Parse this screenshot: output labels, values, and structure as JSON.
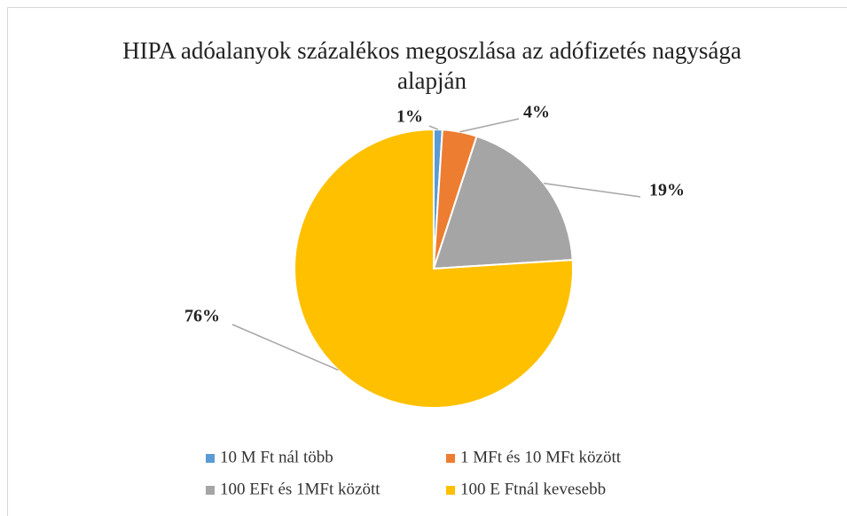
{
  "chart_data": {
    "type": "pie",
    "title": "HIPA adóalanyok százalékos megoszlása az adófizetés nagysága alapján",
    "categories": [
      "10 M Ft nál több",
      "1 MFt és 10 MFt között",
      "100 EFt és 1MFt között",
      "100 E Ftnál kevesebb"
    ],
    "values": [
      1,
      4,
      19,
      76
    ],
    "value_labels": [
      "1%",
      "4%",
      "19%",
      "76%"
    ],
    "colors": [
      "#5b9bd5",
      "#ed7d31",
      "#a5a5a5",
      "#ffc000"
    ],
    "legend": "bottom"
  }
}
